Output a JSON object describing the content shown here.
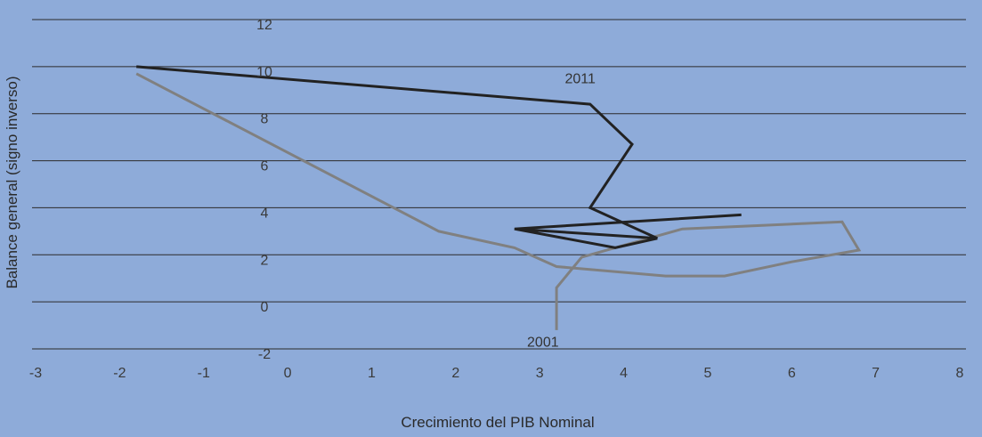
{
  "chart_data": {
    "type": "line",
    "title": "",
    "xlabel": "Crecimiento del PIB Nominal",
    "ylabel": "Balance general (signo inverso)",
    "xlim": [
      -3,
      8
    ],
    "ylim": [
      -2,
      12
    ],
    "x_ticks": [
      "-3",
      "-2",
      "-1",
      "0",
      "1",
      "2",
      "3",
      "4",
      "5",
      "6",
      "7",
      "8"
    ],
    "y_ticks": [
      "12",
      "10",
      "8",
      "6",
      "4",
      "2",
      "0",
      "-2"
    ],
    "grid": "horizontal",
    "annotations": [
      {
        "text": "2011",
        "x": 3.3,
        "y": 9.3
      },
      {
        "text": "2001",
        "x": 2.85,
        "y": -1.9
      }
    ],
    "series": [
      {
        "color": "#808080",
        "points": [
          [
            3.2,
            -1.2
          ],
          [
            3.2,
            0.6
          ],
          [
            3.5,
            1.9
          ],
          [
            4.7,
            3.1
          ],
          [
            6.6,
            3.4
          ],
          [
            6.8,
            2.2
          ],
          [
            6.0,
            1.7
          ],
          [
            5.2,
            1.1
          ],
          [
            4.5,
            1.1
          ],
          [
            3.2,
            1.5
          ],
          [
            2.7,
            2.3
          ],
          [
            1.8,
            3.0
          ],
          [
            -1.8,
            9.7
          ]
        ]
      },
      {
        "color": "#222222",
        "points": [
          [
            -1.8,
            10.0
          ],
          [
            3.6,
            8.4
          ],
          [
            4.1,
            6.7
          ],
          [
            3.6,
            4.0
          ],
          [
            4.4,
            2.7
          ],
          [
            2.7,
            3.1
          ],
          [
            5.4,
            3.7
          ],
          [
            2.7,
            3.1
          ],
          [
            3.9,
            2.3
          ],
          [
            4.4,
            2.7
          ]
        ]
      }
    ]
  },
  "colors": {
    "background": "#8eabd9",
    "gridline": "#2b2b2b"
  }
}
